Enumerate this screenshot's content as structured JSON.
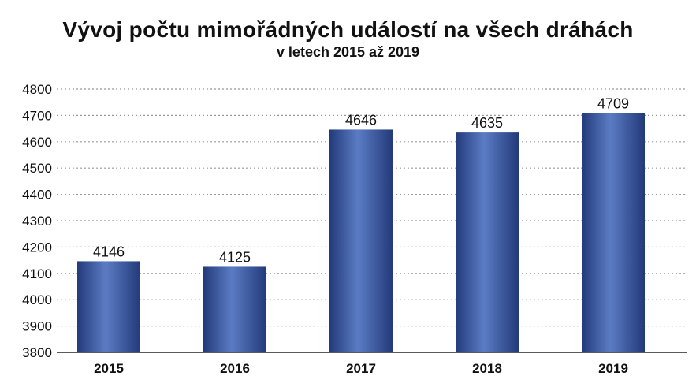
{
  "chart_data": {
    "type": "bar",
    "title": "Vývoj počtu mimořádných událostí na všech dráhách",
    "subtitle": "v letech 2015 až 2019",
    "categories": [
      "2015",
      "2016",
      "2017",
      "2018",
      "2019"
    ],
    "values": [
      4146,
      4125,
      4646,
      4635,
      4709
    ],
    "data_labels": [
      "4146",
      "4125",
      "4646",
      "4635",
      "4709"
    ],
    "ylim": [
      3800,
      4800
    ],
    "yticks": [
      3800,
      3900,
      4000,
      4100,
      4200,
      4300,
      4400,
      4500,
      4600,
      4700,
      4800
    ],
    "ytick_labels": [
      "3800",
      "3900",
      "4000",
      "4100",
      "4200",
      "4300",
      "4400",
      "4500",
      "4600",
      "4700",
      "4800"
    ],
    "grid": true,
    "legend": "none",
    "xlabel": "",
    "ylabel": ""
  },
  "colors": {
    "bar_dark": "#233a7a",
    "bar_mid": "#3a5aa8",
    "bar_light": "#5b7cc4",
    "grid": "#9a9a9a",
    "axis": "#222222",
    "text": "#111111"
  }
}
